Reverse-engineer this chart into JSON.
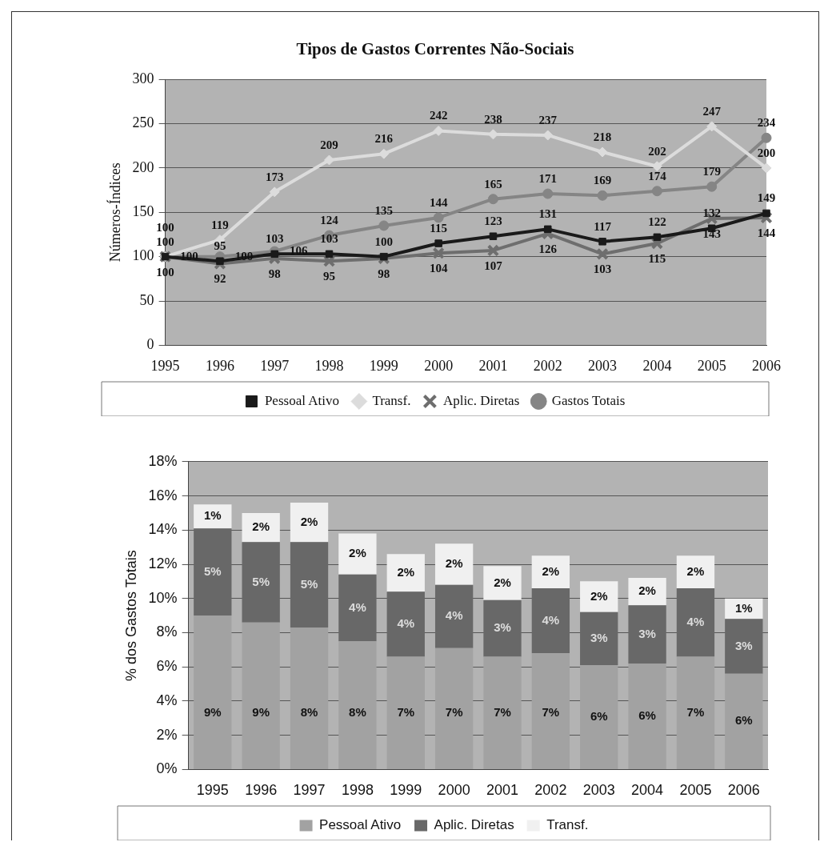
{
  "chart_data": [
    {
      "type": "line",
      "title": "Tipos de Gastos Correntes Não-Sociais",
      "ylabel": "Números-Índices",
      "categories": [
        "1995",
        "1996",
        "1997",
        "1998",
        "1999",
        "2000",
        "2001",
        "2002",
        "2003",
        "2004",
        "2005",
        "2006"
      ],
      "series": [
        {
          "name": "Pessoal Ativo",
          "color": "#1a1a1a",
          "marker": "square",
          "values": [
            100,
            95,
            103,
            103,
            100,
            115,
            123,
            131,
            117,
            122,
            132,
            149
          ]
        },
        {
          "name": "Transf.",
          "color": "#dcdcdc",
          "marker": "diamond",
          "values": [
            100,
            119,
            173,
            209,
            216,
            242,
            238,
            237,
            218,
            202,
            247,
            200
          ]
        },
        {
          "name": "Aplic. Diretas",
          "color": "#6e6e6e",
          "marker": "cross",
          "values": [
            100,
            92,
            98,
            95,
            98,
            104,
            107,
            126,
            103,
            115,
            143,
            144
          ]
        },
        {
          "name": "Gastos Totais",
          "color": "#858585",
          "marker": "circle",
          "values": [
            100,
            100,
            106,
            124,
            135,
            144,
            165,
            171,
            169,
            174,
            179,
            234
          ]
        }
      ],
      "ylim": [
        0,
        300
      ],
      "yticks": [
        0,
        50,
        100,
        150,
        200,
        250,
        300
      ],
      "grid": "y",
      "legend": "bottom",
      "data_labels": true
    },
    {
      "type": "bar",
      "stacked": true,
      "ylabel": "% dos Gastos Totais",
      "categories": [
        "1995",
        "1996",
        "1997",
        "1998",
        "1999",
        "2000",
        "2001",
        "2002",
        "2003",
        "2004",
        "2005",
        "2006"
      ],
      "series": [
        {
          "name": "Pessoal Ativo",
          "color": "#a2a2a2",
          "values": [
            9.0,
            8.6,
            8.3,
            7.5,
            6.6,
            7.1,
            6.6,
            6.8,
            6.1,
            6.2,
            6.6,
            5.6
          ],
          "value_labels": [
            "9%",
            "9%",
            "8%",
            "8%",
            "7%",
            "7%",
            "7%",
            "7%",
            "6%",
            "6%",
            "7%",
            "6%"
          ]
        },
        {
          "name": "Aplic. Diretas",
          "color": "#686868",
          "values": [
            5.1,
            4.7,
            5.0,
            3.9,
            3.8,
            3.7,
            3.3,
            3.8,
            3.1,
            3.4,
            4.0,
            3.2
          ],
          "value_labels": [
            "5%",
            "5%",
            "5%",
            "4%",
            "4%",
            "4%",
            "3%",
            "4%",
            "3%",
            "3%",
            "4%",
            "3%"
          ]
        },
        {
          "name": "Transf.",
          "color": "#f0f0f0",
          "values": [
            1.4,
            1.7,
            2.3,
            2.4,
            2.2,
            2.4,
            2.0,
            1.9,
            1.8,
            1.6,
            1.9,
            1.2
          ],
          "value_labels": [
            "1%",
            "2%",
            "2%",
            "2%",
            "2%",
            "2%",
            "2%",
            "2%",
            "2%",
            "2%",
            "2%",
            "1%"
          ]
        }
      ],
      "ylim": [
        0,
        18
      ],
      "yticks": [
        {
          "value": 0,
          "label": "0%"
        },
        {
          "value": 2,
          "label": "2%"
        },
        {
          "value": 4,
          "label": "4%"
        },
        {
          "value": 6,
          "label": "6%"
        },
        {
          "value": 8,
          "label": "8%"
        },
        {
          "value": 10,
          "label": "10%"
        },
        {
          "value": 12,
          "label": "12%"
        },
        {
          "value": 14,
          "label": "14%"
        },
        {
          "value": 16,
          "label": "16%"
        },
        {
          "value": 18,
          "label": "18%"
        }
      ],
      "grid": "y",
      "legend": "bottom"
    }
  ]
}
